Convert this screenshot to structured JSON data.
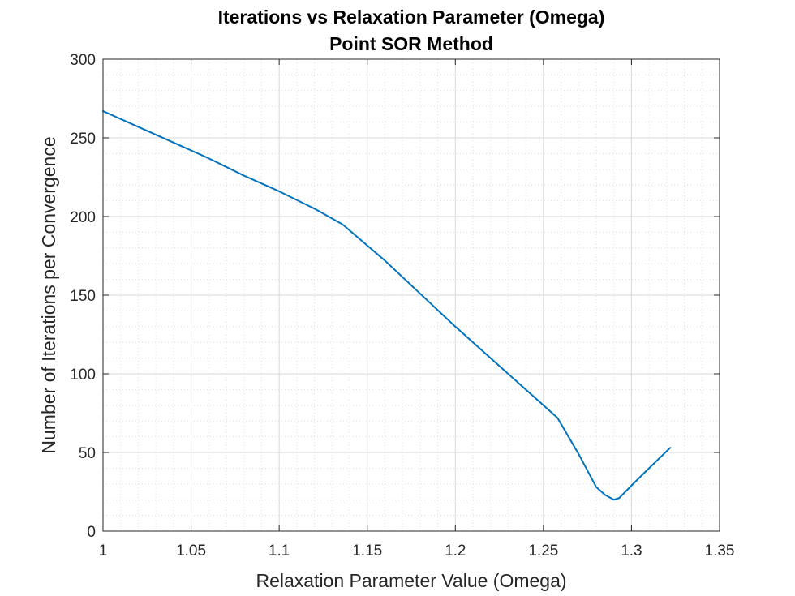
{
  "chart_data": {
    "type": "line",
    "title": [
      "Iterations vs Relaxation Parameter (Omega)",
      "Point SOR Method"
    ],
    "xlabel": "Relaxation Parameter Value (Omega)",
    "ylabel": "Number of Iterations per Convergence",
    "xlim": [
      1,
      1.35
    ],
    "ylim": [
      0,
      300
    ],
    "xticks": [
      1,
      1.05,
      1.1,
      1.15,
      1.2,
      1.25,
      1.3,
      1.35
    ],
    "xtick_labels": [
      "1",
      "1.05",
      "1.1",
      "1.15",
      "1.2",
      "1.25",
      "1.3",
      "1.35"
    ],
    "yticks": [
      0,
      50,
      100,
      150,
      200,
      250,
      300
    ],
    "ytick_labels": [
      "0",
      "50",
      "100",
      "150",
      "200",
      "250",
      "300"
    ],
    "grid": true,
    "minor_grid": true,
    "series": [
      {
        "color": "#0072bd",
        "x": [
          1.0,
          1.02,
          1.04,
          1.06,
          1.08,
          1.1,
          1.12,
          1.136,
          1.16,
          1.18,
          1.2,
          1.22,
          1.24,
          1.258,
          1.27,
          1.28,
          1.285,
          1.29,
          1.293,
          1.3,
          1.31,
          1.322
        ],
        "y": [
          267,
          257,
          247,
          237,
          226,
          216,
          205,
          195,
          172,
          151,
          130,
          110,
          90,
          72,
          49,
          28,
          23,
          20,
          21,
          29,
          40,
          53
        ]
      }
    ]
  }
}
